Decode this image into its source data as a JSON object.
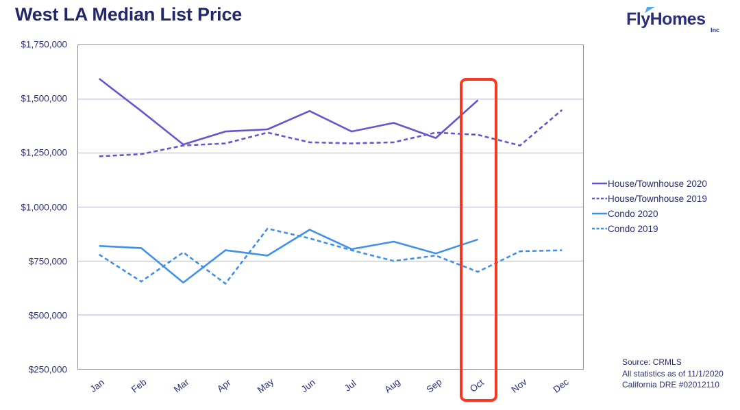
{
  "page": {
    "title": "West LA Median List Price"
  },
  "logo": {
    "name": "FlyHomes",
    "suffix": "Inc",
    "accent_color": "#56aaee",
    "text_color": "#2b2f7a"
  },
  "chart_data": {
    "type": "line",
    "title": "West LA Median List Price",
    "categories": [
      "Jan",
      "Feb",
      "Mar",
      "Apr",
      "May",
      "Jun",
      "Jul",
      "Aug",
      "Sep",
      "Oct",
      "Nov",
      "Dec"
    ],
    "series": [
      {
        "name": "House/Townhouse 2020",
        "style": "solid",
        "color": "#6456cf",
        "values": [
          1595000,
          1445000,
          1290000,
          1350000,
          1360000,
          1445000,
          1350000,
          1390000,
          1320000,
          1495000,
          null,
          null
        ]
      },
      {
        "name": "House/Townhouse 2019",
        "style": "dashed",
        "color": "#6456cf",
        "values": [
          1235000,
          1245000,
          1285000,
          1295000,
          1345000,
          1300000,
          1295000,
          1300000,
          1345000,
          1335000,
          1285000,
          1450000
        ]
      },
      {
        "name": "Condo 2020",
        "style": "solid",
        "color": "#3f90ea",
        "values": [
          820000,
          810000,
          650000,
          800000,
          775000,
          895000,
          805000,
          840000,
          785000,
          850000,
          null,
          null
        ]
      },
      {
        "name": "Condo 2019",
        "style": "dashed",
        "color": "#3f90ea",
        "values": [
          780000,
          655000,
          790000,
          645000,
          900000,
          855000,
          800000,
          750000,
          775000,
          700000,
          795000,
          800000
        ]
      }
    ],
    "ylim": [
      250000,
      1750000
    ],
    "ytick_step": 250000,
    "ytick_labels": [
      "$1,750,000",
      "$1,500,000",
      "$1,250,000",
      "$1,000,000",
      "$750,000",
      "$500,000",
      "$250,000"
    ],
    "grid": true,
    "gridline_color": "#b5b1d1",
    "axis_border_color": "#8f8abb",
    "legend_position": "right",
    "highlight": {
      "category": "Oct",
      "color": "#f93822"
    }
  },
  "source": {
    "lines": [
      "Source: CRMLS",
      "All statistics as of 11/1/2020",
      "California DRE #02012110"
    ]
  }
}
